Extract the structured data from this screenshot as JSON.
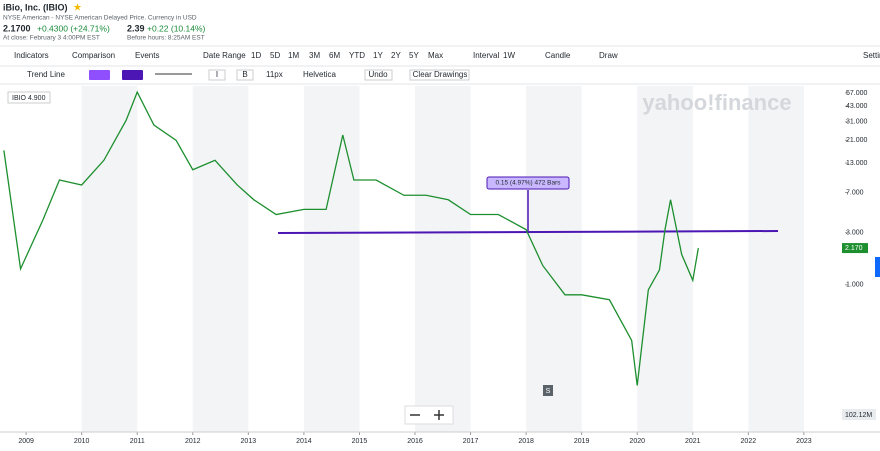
{
  "header": {
    "title": "iBio, Inc. (IBIO)",
    "exchange_note": "NYSE American - NYSE American Delayed Price. Currency in USD",
    "close_price": "2.1700",
    "close_change": "+0.4300 (+24.71%)",
    "close_label": "At close: February 3 4:00PM EST",
    "pre_price": "2.39",
    "pre_change": "+0.22 (10.14%)",
    "pre_label": "Before hours: 8:25AM EST"
  },
  "toolbar": [
    "Indicators",
    "Comparison",
    "Events",
    "Date Range",
    "1D",
    "5D",
    "1M",
    "3M",
    "6M",
    "YTD",
    "1Y",
    "2Y",
    "5Y",
    "Max",
    "Interval",
    "1W",
    "Candle",
    "Draw",
    "Settings"
  ],
  "draw_toolbar": {
    "tool": "Trend Line",
    "bold_italic": [
      "I",
      "B"
    ],
    "font_size": "11px",
    "font": "Helvetica",
    "undo": "Undo",
    "clear": "Clear Drawings"
  },
  "chart_data": {
    "type": "line",
    "log_scale": true,
    "grid": false,
    "color": "#1d8f2f",
    "symbol_box": "IBIO 4.900",
    "price_tag": "2.170",
    "volume_label": "102.12M",
    "watermark": "yahoo!finance",
    "annotation": "0.15 (4.97%) 472 Bars",
    "marker": "S",
    "series": [
      {
        "name": "IBIO",
        "color": "#1d8f2f",
        "x": [
          2008.6,
          2008.9,
          2009.3,
          2009.6,
          2010.0,
          2010.4,
          2010.8,
          2011.0,
          2011.3,
          2011.7,
          2012.0,
          2012.4,
          2012.8,
          2013.1,
          2013.5,
          2014.0,
          2014.4,
          2014.7,
          2014.9,
          2015.3,
          2015.8,
          2016.2,
          2016.6,
          2017.0,
          2017.5,
          2018.0,
          2018.3,
          2018.7,
          2019.0,
          2019.5,
          2019.9,
          2020.0,
          2020.2,
          2020.4,
          2020.5,
          2020.6,
          2020.8,
          2021.0,
          2021.1
        ],
        "values": [
          17,
          1.4,
          3.9,
          9.1,
          8.2,
          13.8,
          32,
          58,
          29,
          21,
          11.3,
          13.8,
          8.2,
          6,
          4.4,
          4.9,
          4.9,
          23.5,
          9.1,
          9.1,
          6.6,
          6.6,
          6,
          4.4,
          4.4,
          3.2,
          1.5,
          0.81,
          0.81,
          0.73,
          0.31,
          0.12,
          0.9,
          1.37,
          3.2,
          6,
          1.9,
          1.1,
          2.17
        ]
      }
    ],
    "xlim": [
      2008.53,
      2023.74
    ],
    "xticks": [
      2009,
      2010,
      2011,
      2012,
      2013,
      2014,
      2015,
      2016,
      2017,
      2018,
      2019,
      2020,
      2021,
      2022,
      2023
    ],
    "ylim": [
      0.045,
      66
    ],
    "yticks": [
      {
        "value": 57,
        "label": "57.000"
      },
      {
        "value": 43,
        "label": "43.000"
      },
      {
        "value": 31,
        "label": "31.000"
      },
      {
        "value": 21,
        "label": "21.000"
      },
      {
        "value": 13,
        "label": "13.000"
      },
      {
        "value": 7,
        "label": "7.000"
      },
      {
        "value": 3,
        "label": "3.000"
      },
      {
        "value": 1,
        "label": "1.000"
      }
    ]
  }
}
